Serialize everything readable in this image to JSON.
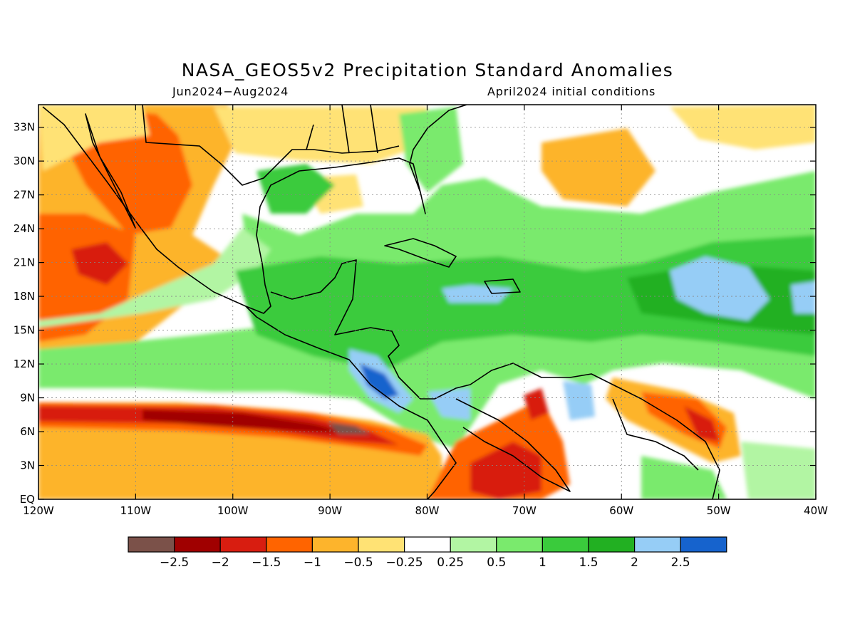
{
  "title": "NASA_GEOS5v2 Precipitation Standard Anomalies",
  "period": "Jun2024−Aug2024",
  "init": "April2024 initial conditions",
  "chart_data": {
    "type": "heatmap",
    "xlim": [
      -120,
      -40
    ],
    "ylim": [
      0,
      35
    ],
    "x_ticks": [
      "120W",
      "110W",
      "100W",
      "90W",
      "80W",
      "70W",
      "60W",
      "50W",
      "40W"
    ],
    "y_ticks": [
      "EQ",
      "3N",
      "6N",
      "9N",
      "12N",
      "15N",
      "18N",
      "21N",
      "24N",
      "27N",
      "30N",
      "33N"
    ],
    "grid": true,
    "colorbar": {
      "colors": [
        "#7b5149",
        "#a00000",
        "#d81d10",
        "#ff6400",
        "#fdb42c",
        "#ffe274",
        "#ffffff",
        "#b2f5a3",
        "#7aea6d",
        "#3acb3c",
        "#22b022",
        "#96cdf6",
        "#1663cd"
      ],
      "labels": [
        "−2.5",
        "−2",
        "−1.5",
        "−1",
        "−0.5",
        "−0.25",
        "0.25",
        "0.5",
        "1",
        "1.5",
        "2",
        "2.5"
      ]
    }
  }
}
